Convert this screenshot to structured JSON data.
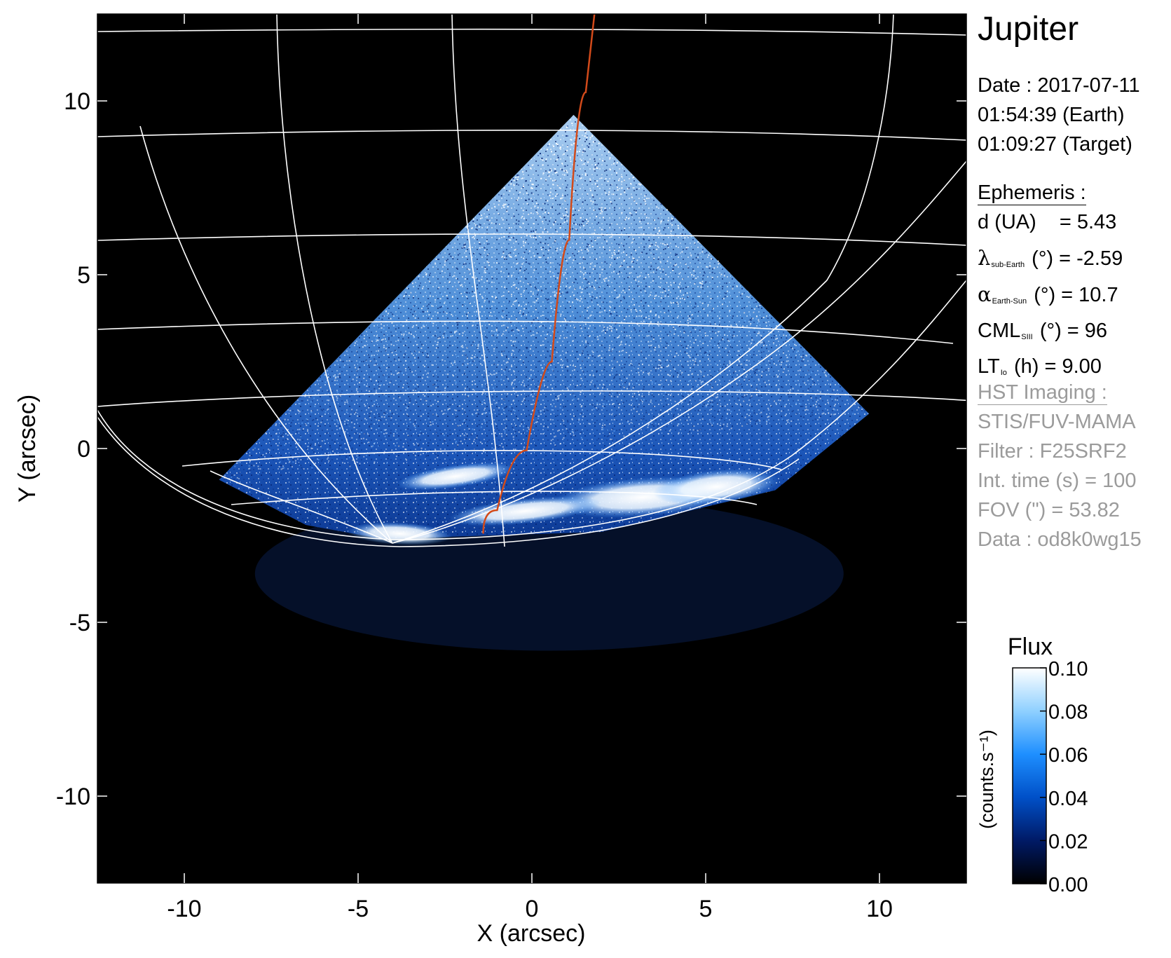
{
  "planet": "Jupiter",
  "observation": {
    "date_line": "Date : 2017-07-11",
    "earth_time": "01:54:39 (Earth)",
    "target_time": "01:09:27 (Target)"
  },
  "ephemeris": {
    "heading": "Ephemeris :",
    "rows": [
      {
        "symbol": "d (UA)",
        "sub": "",
        "rest": "= 5.43"
      },
      {
        "symbol": "λ",
        "sub": "sub-Earth",
        "rest": "(°) = -2.59"
      },
      {
        "symbol": "α",
        "sub": "Earth-Sun",
        "rest": "(°) = 10.7"
      },
      {
        "symbol": "CML",
        "sub": "SIII",
        "rest": "(°) = 96"
      },
      {
        "symbol": "LT",
        "sub": "Io",
        "rest": "(h) = 9.00"
      }
    ]
  },
  "imaging": {
    "heading": "HST Imaging :",
    "instrument": "STIS/FUV-MAMA",
    "filter": "Filter : F25SRF2",
    "int_time": "Int. time (s) = 100",
    "fov": "FOV (\") = 53.82",
    "data_id": "Data : od8k0wg15"
  },
  "colorbar": {
    "title": "Flux",
    "unit_label": "(counts.s⁻¹)",
    "ticks": [
      "0.10",
      "0.08",
      "0.06",
      "0.04",
      "0.02",
      "0.00"
    ],
    "tick_values": [
      0.1,
      0.08,
      0.06,
      0.04,
      0.02,
      0.0
    ],
    "range": [
      0.0,
      0.1
    ],
    "colors": [
      "#000000",
      "#001a66",
      "#0050c8",
      "#1e8fff",
      "#8fd0ff",
      "#ffffff"
    ]
  },
  "chart_data": {
    "type": "heatmap",
    "xlabel": "X (arcsec)",
    "ylabel": "Y (arcsec)",
    "xlim": [
      -12.5,
      12.5
    ],
    "ylim": [
      -12.5,
      12.5
    ],
    "x_ticks": [
      -10,
      -5,
      0,
      5,
      10
    ],
    "y_ticks": [
      -10,
      -5,
      0,
      5,
      10
    ],
    "x_tick_labels": [
      "-10",
      "-5",
      "0",
      "5",
      "10"
    ],
    "y_tick_labels": [
      "-10",
      "-5",
      "0",
      "5",
      "10"
    ],
    "background_color": "#000000",
    "grid_color": "#ffffff",
    "footpath_color": "#d24a1a",
    "emission_region": {
      "apex": [
        1.2,
        9.6
      ],
      "left_corner": [
        -9.0,
        -0.9
      ],
      "right_corner": [
        9.7,
        1.0
      ],
      "bottom_edge": [
        -4.3,
        -2.6
      ]
    },
    "auroral_features": [
      {
        "center": [
          -2.2,
          -0.8
        ],
        "flux": 0.1
      },
      {
        "center": [
          3.2,
          -1.4
        ],
        "flux": 0.1
      },
      {
        "center": [
          5.3,
          -1.1
        ],
        "flux": 0.1
      },
      {
        "center": [
          -3.8,
          -2.45
        ],
        "flux": 0.1
      },
      {
        "center": [
          -0.2,
          -1.8
        ],
        "flux": 0.09
      }
    ],
    "io_footpath": [
      [
        -1.4,
        -2.45
      ],
      [
        -0.6,
        -1.1
      ],
      [
        0.3,
        1.0
      ],
      [
        0.85,
        4.0
      ],
      [
        1.3,
        8.0
      ],
      [
        1.8,
        12.5
      ]
    ]
  }
}
